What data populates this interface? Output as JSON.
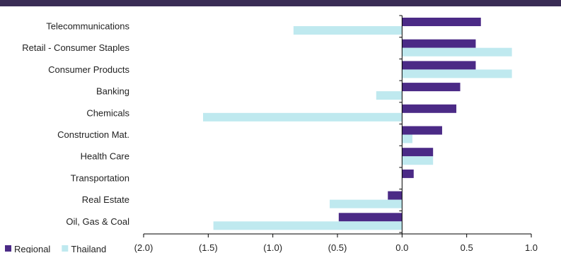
{
  "chart_data": {
    "type": "bar",
    "orientation": "horizontal",
    "categories": [
      "Telecommunications",
      "Retail - Consumer Staples",
      "Consumer Products",
      "Banking",
      "Chemicals",
      "Construction Mat.",
      "Health Care",
      "Transportation",
      "Real Estate",
      "Oil, Gas & Coal"
    ],
    "series": [
      {
        "name": "Regional",
        "color": "#4b2a86",
        "values": [
          0.61,
          0.57,
          0.57,
          0.45,
          0.42,
          0.31,
          0.24,
          0.09,
          -0.11,
          -0.49
        ]
      },
      {
        "name": "Thailand",
        "color": "#bfe9ef",
        "values": [
          -0.84,
          0.85,
          0.85,
          -0.2,
          -1.54,
          0.08,
          0.24,
          0.0,
          -0.56,
          -1.46
        ]
      }
    ],
    "xlim": [
      -2.0,
      1.0
    ],
    "xticks": [
      -2.0,
      -1.5,
      -1.0,
      -0.5,
      0.0,
      0.5,
      1.0
    ],
    "xtick_labels": [
      "(2.0)",
      "(1.5)",
      "(1.0)",
      "(0.5)",
      "0.0",
      "0.5",
      "1.0"
    ],
    "legend_position": "bottom-left",
    "title": "",
    "xlabel": "",
    "ylabel": "",
    "grid": false
  }
}
